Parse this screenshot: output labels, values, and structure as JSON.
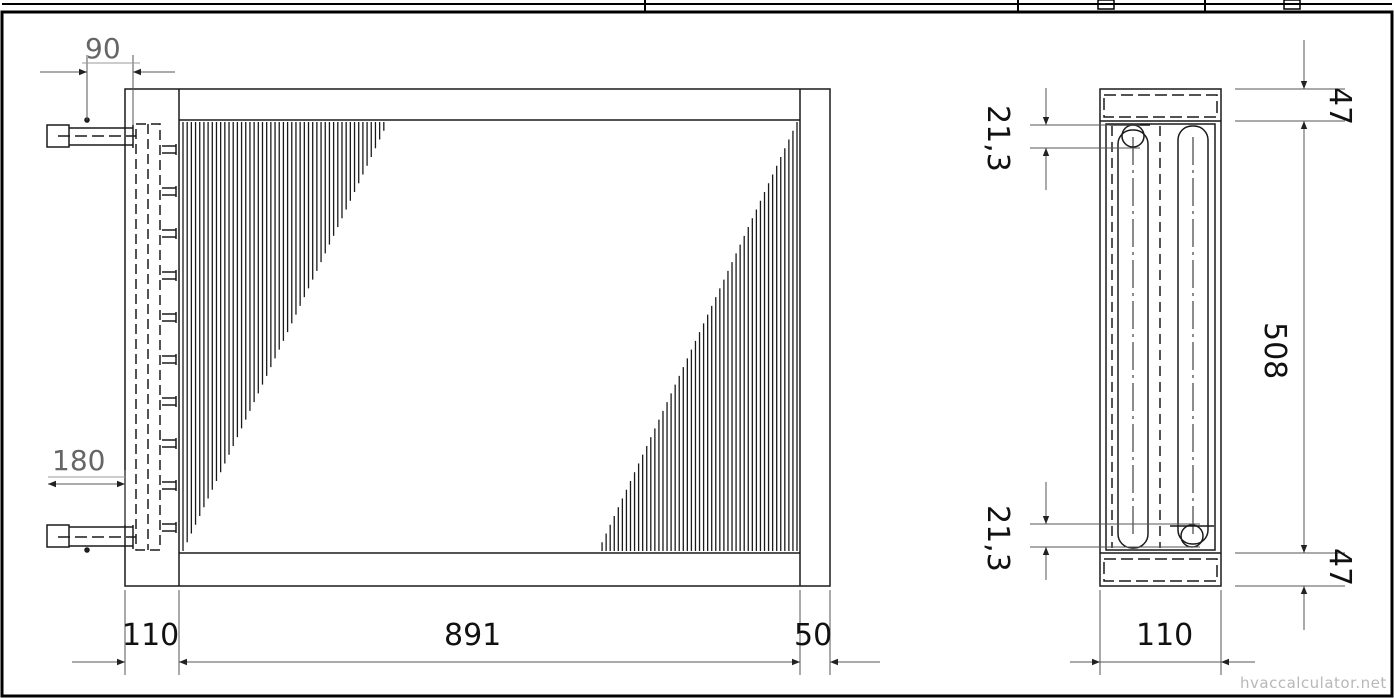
{
  "dimensions": {
    "front_top_pipe_offset": "90",
    "front_bottom_pipe_offset": "180",
    "front_collector_width": "110",
    "front_fin_length": "891",
    "front_right_frame": "50",
    "side_top_pipe_dia": "21,3",
    "side_bottom_pipe_dia": "21,3",
    "side_top_margin": "47",
    "side_bottom_margin": "47",
    "side_height": "508",
    "side_depth": "110"
  },
  "watermark": "hvaccalculator.net",
  "colors": {
    "line": "#1a1a1a",
    "dim_line": "#555555",
    "background": "#ffffff",
    "border": "#000000"
  }
}
